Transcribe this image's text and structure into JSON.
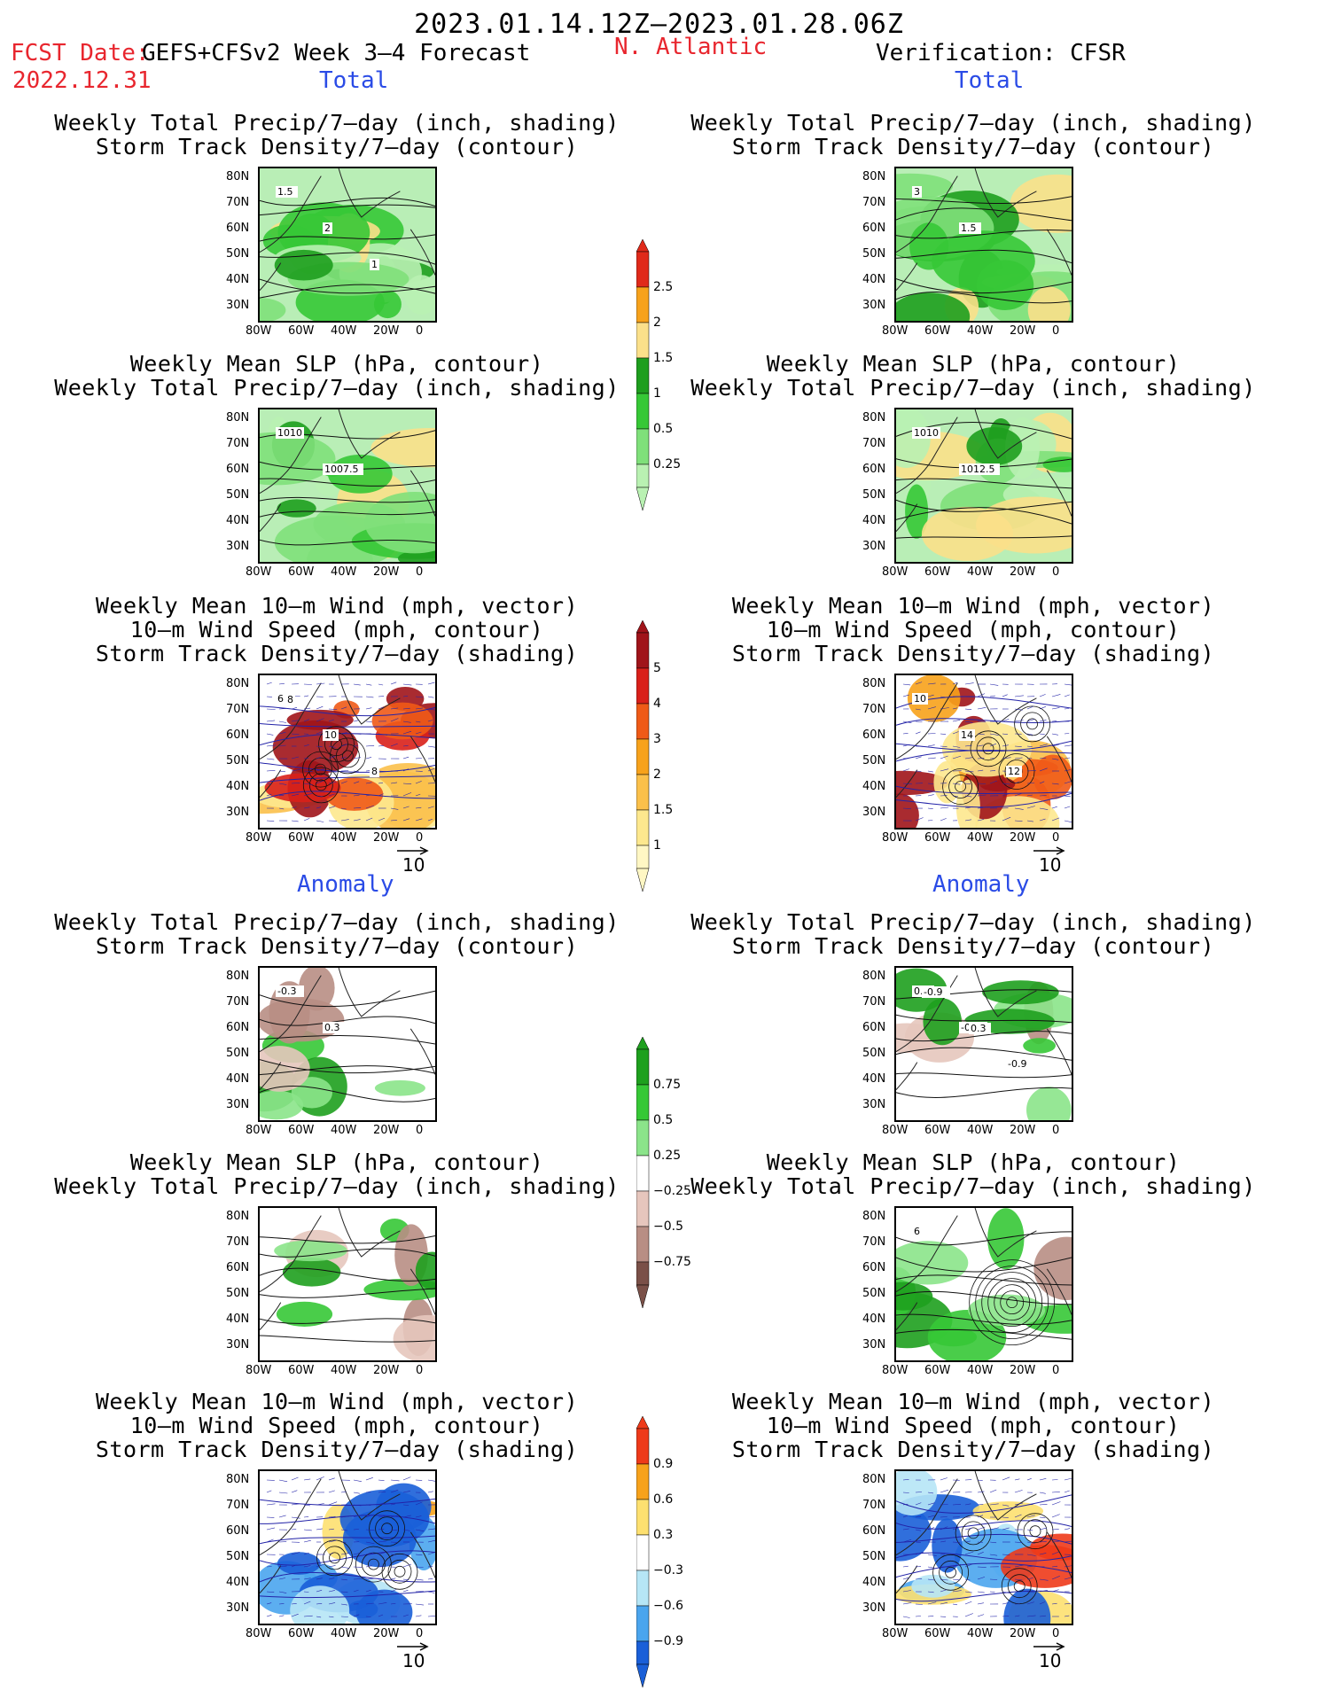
{
  "header": {
    "date_range": "2023.01.14.12Z–2023.01.28.06Z",
    "fcst_date_label": "FCST Date:",
    "fcst_date": "2022.12.31",
    "forecast_name": "GEFS+CFSv2 Week 3–4 Forecast",
    "region": "N. Atlantic",
    "verification": "Verification: CFSR"
  },
  "sections": {
    "total_left": "Total",
    "total_right": "Total",
    "anomaly_left": "Anomaly",
    "anomaly_right": "Anomaly"
  },
  "panel_titles": {
    "precip_storm": [
      "Weekly Total Precip/7–day (inch, shading)",
      "Storm Track Density/7–day (contour)"
    ],
    "slp_precip": [
      "Weekly Mean SLP (hPa, contour)",
      "Weekly Total Precip/7–day (inch, shading)"
    ],
    "wind_storm": [
      "Weekly Mean 10–m Wind (mph, vector)",
      "10–m Wind Speed (mph, contour)",
      "Storm Track Density/7–day (shading)"
    ]
  },
  "axes": {
    "lat_ticks": [
      "80N",
      "70N",
      "60N",
      "50N",
      "40N",
      "30N"
    ],
    "lon_ticks": [
      "80W",
      "60W",
      "40W",
      "20W",
      "0"
    ]
  },
  "vector_reference": "10",
  "colorbars": {
    "precip_total": {
      "labels": [
        "2.5",
        "2",
        "1.5",
        "1",
        "0.5",
        "0.25"
      ],
      "colors": [
        "#e02a1a",
        "#f7a21b",
        "#fbe08a",
        "#1e9e1e",
        "#36c836",
        "#7fe07a",
        "#b9f1b2"
      ]
    },
    "storm_total": {
      "labels": [
        "5",
        "4",
        "3",
        "2",
        "1.5",
        "1"
      ],
      "colors": [
        "#a0141a",
        "#d9201a",
        "#ef5a17",
        "#f7a21b",
        "#fbc04a",
        "#fde88e",
        "#fff7c4"
      ]
    },
    "precip_anom": {
      "labels": [
        "0.75",
        "0.5",
        "0.25",
        "−0.25",
        "−0.5",
        "−0.75"
      ],
      "colors": [
        "#1ea01e",
        "#36c836",
        "#8be48a",
        "#ffffff",
        "#e6c6bd",
        "#b88e84",
        "#7a5048"
      ]
    },
    "storm_anom": {
      "labels": [
        "0.9",
        "0.6",
        "0.3",
        "−0.3",
        "−0.6",
        "−0.9"
      ],
      "colors": [
        "#ee3a1a",
        "#f7a21b",
        "#fde070",
        "#ffffff",
        "#b6e6f6",
        "#4aa5ee",
        "#1a5fd8"
      ]
    }
  },
  "contour_labels": {
    "p1": [
      "1.5",
      "2",
      "1"
    ],
    "p2": [
      "3",
      "1.5"
    ],
    "p3": [
      "1010",
      "1007.5"
    ],
    "p4": [
      "1010",
      "1012.5"
    ],
    "p5": [
      "6",
      "10",
      "8",
      "8"
    ],
    "p6": [
      "10",
      "14",
      "12"
    ],
    "p7": [
      "-0.3",
      "0.3"
    ],
    "p8": [
      "0.3",
      "-0.3",
      "-0.9",
      "-0.9",
      "0.3"
    ],
    "p10": [
      "6"
    ]
  }
}
